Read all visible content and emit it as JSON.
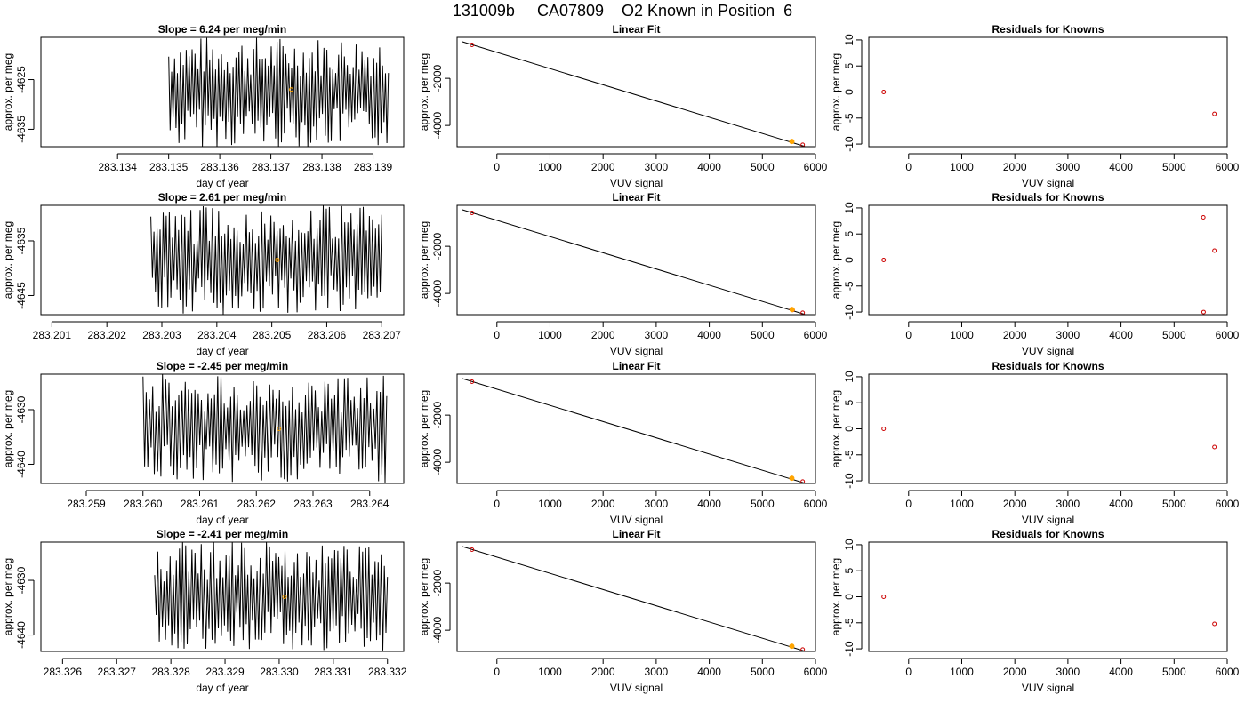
{
  "title": "131009b     CA07809    O2 Known in Position  6",
  "colors": {
    "trace": "#000000",
    "midpoint": "#FFA500",
    "known": "#CC0000",
    "fit": "#000000"
  },
  "chart_data": [
    {
      "type": "line",
      "row": 0,
      "col": 0,
      "title": "Slope =  6.24  per meg/min",
      "xlabel": "day of year",
      "ylabel": "approx. per meg",
      "xlim": [
        283.1325,
        283.1396
      ],
      "ylim": [
        -4638.5,
        -4616.5
      ],
      "xticks": [
        283.134,
        283.135,
        283.136,
        283.137,
        283.138,
        283.139
      ],
      "xticklabels": [
        "283.134",
        "283.135",
        "283.136",
        "283.137",
        "283.138",
        "283.139"
      ],
      "yticks": [
        -4625,
        -4635
      ],
      "yticklabels": [
        "-4625",
        "-4635"
      ],
      "trace_x_range": [
        283.135,
        283.1393
      ],
      "trace_mean": -4627.5,
      "trace_amplitude": 9,
      "midpoint": {
        "x": 283.1374,
        "y": -4627
      }
    },
    {
      "type": "line",
      "row": 1,
      "col": 0,
      "title": "Slope =  2.61  per meg/min",
      "xlabel": "day of year",
      "ylabel": "approx. per meg",
      "xlim": [
        283.2008,
        283.2074
      ],
      "ylim": [
        -4648.5,
        -4628.5
      ],
      "xticks": [
        283.201,
        283.202,
        283.203,
        283.204,
        283.205,
        283.206,
        283.207
      ],
      "xticklabels": [
        "283.201",
        "283.202",
        "283.203",
        "283.204",
        "283.205",
        "283.206",
        "283.207"
      ],
      "yticks": [
        -4635,
        -4645
      ],
      "yticklabels": [
        "-4635",
        "-4645"
      ],
      "trace_x_range": [
        283.2028,
        283.207
      ],
      "trace_mean": -4638.5,
      "trace_amplitude": 8,
      "midpoint": {
        "x": 283.2051,
        "y": -4638.5
      }
    },
    {
      "type": "line",
      "row": 2,
      "col": 0,
      "title": "Slope =  -2.45  per meg/min",
      "xlabel": "day of year",
      "ylabel": "approx. per meg",
      "xlim": [
        283.2582,
        283.2646
      ],
      "ylim": [
        -4643.5,
        -4623.5
      ],
      "xticks": [
        283.259,
        283.26,
        283.261,
        283.262,
        283.263,
        283.264
      ],
      "xticklabels": [
        "283.259",
        "283.260",
        "283.261",
        "283.262",
        "283.263",
        "283.264"
      ],
      "yticks": [
        -4630,
        -4640
      ],
      "yticklabels": [
        "-4630",
        "-4640"
      ],
      "trace_x_range": [
        283.26,
        283.2643
      ],
      "trace_mean": -4633.5,
      "trace_amplitude": 8,
      "midpoint": {
        "x": 283.2624,
        "y": -4633.5
      }
    },
    {
      "type": "line",
      "row": 3,
      "col": 0,
      "title": "Slope =  -2.41  per meg/min",
      "xlabel": "day of year",
      "ylabel": "approx. per meg",
      "xlim": [
        283.3256,
        283.3323
      ],
      "ylim": [
        -4643,
        -4623
      ],
      "xticks": [
        283.326,
        283.327,
        283.328,
        283.329,
        283.33,
        283.331,
        283.332
      ],
      "xticklabels": [
        "283.326",
        "283.327",
        "283.328",
        "283.329",
        "283.330",
        "283.331",
        "283.332"
      ],
      "yticks": [
        -4630,
        -4640
      ],
      "yticklabels": [
        "-4630",
        "-4640"
      ],
      "trace_x_range": [
        283.3277,
        283.332
      ],
      "trace_mean": -4633,
      "trace_amplitude": 8,
      "midpoint": {
        "x": 283.3301,
        "y": -4633
      }
    },
    {
      "type": "scatter",
      "row": 0,
      "col": 1,
      "title": "Linear Fit",
      "xlabel": "VUV signal",
      "ylabel": "approx. per meg",
      "xlim": [
        -750,
        6000
      ],
      "ylim": [
        -4900,
        -260
      ],
      "xticks": [
        0,
        1000,
        2000,
        3000,
        4000,
        5000,
        6000
      ],
      "xticklabels": [
        "0",
        "1000",
        "2000",
        "3000",
        "4000",
        "5000",
        "6000"
      ],
      "yticks": [
        -2000,
        -4000
      ],
      "yticklabels": [
        "-2000",
        "-4000"
      ],
      "fit_line": {
        "x": [
          -650,
          5800
        ],
        "y": [
          -450,
          -4890
        ]
      },
      "points": [
        {
          "x": -470,
          "y": -580
        },
        {
          "x": 5555,
          "y": -4680
        },
        {
          "x": 5760,
          "y": -4822
        }
      ],
      "midpoint": {
        "x": 5555,
        "y": -4680
      }
    },
    {
      "type": "scatter",
      "row": 1,
      "col": 1,
      "title": "Linear Fit",
      "xlabel": "VUV signal",
      "ylabel": "approx. per meg",
      "xlim": [
        -750,
        6000
      ],
      "ylim": [
        -4900,
        -260
      ],
      "xticks": [
        0,
        1000,
        2000,
        3000,
        4000,
        5000,
        6000
      ],
      "xticklabels": [
        "0",
        "1000",
        "2000",
        "3000",
        "4000",
        "5000",
        "6000"
      ],
      "yticks": [
        -2000,
        -4000
      ],
      "yticklabels": [
        "-2000",
        "-4000"
      ],
      "fit_line": {
        "x": [
          -650,
          5800
        ],
        "y": [
          -450,
          -4890
        ]
      },
      "points": [
        {
          "x": -470,
          "y": -580
        },
        {
          "x": 5550,
          "y": -4668
        },
        {
          "x": 5570,
          "y": -4700
        },
        {
          "x": 5760,
          "y": -4822
        }
      ],
      "midpoint": {
        "x": 5560,
        "y": -4684
      }
    },
    {
      "type": "scatter",
      "row": 2,
      "col": 1,
      "title": "Linear Fit",
      "xlabel": "VUV signal",
      "ylabel": "approx. per meg",
      "xlim": [
        -750,
        6000
      ],
      "ylim": [
        -4900,
        -260
      ],
      "xticks": [
        0,
        1000,
        2000,
        3000,
        4000,
        5000,
        6000
      ],
      "xticklabels": [
        "0",
        "1000",
        "2000",
        "3000",
        "4000",
        "5000",
        "6000"
      ],
      "yticks": [
        -2000,
        -4000
      ],
      "yticklabels": [
        "-2000",
        "-4000"
      ],
      "fit_line": {
        "x": [
          -650,
          5800
        ],
        "y": [
          -450,
          -4890
        ]
      },
      "points": [
        {
          "x": -470,
          "y": -580
        },
        {
          "x": 5555,
          "y": -4680
        },
        {
          "x": 5760,
          "y": -4822
        }
      ],
      "midpoint": {
        "x": 5555,
        "y": -4680
      }
    },
    {
      "type": "scatter",
      "row": 3,
      "col": 1,
      "title": "Linear Fit",
      "xlabel": "VUV signal",
      "ylabel": "approx. per meg",
      "xlim": [
        -750,
        6000
      ],
      "ylim": [
        -4900,
        -260
      ],
      "xticks": [
        0,
        1000,
        2000,
        3000,
        4000,
        5000,
        6000
      ],
      "xticklabels": [
        "0",
        "1000",
        "2000",
        "3000",
        "4000",
        "5000",
        "6000"
      ],
      "yticks": [
        -2000,
        -4000
      ],
      "yticklabels": [
        "-2000",
        "-4000"
      ],
      "fit_line": {
        "x": [
          -650,
          5800
        ],
        "y": [
          -450,
          -4890
        ]
      },
      "points": [
        {
          "x": -470,
          "y": -580
        },
        {
          "x": 5555,
          "y": -4680
        },
        {
          "x": 5760,
          "y": -4822
        }
      ],
      "midpoint": {
        "x": 5555,
        "y": -4680
      }
    },
    {
      "type": "scatter",
      "row": 0,
      "col": 2,
      "title": "Residuals for Knowns",
      "xlabel": "VUV signal",
      "ylabel": "approx. per meg",
      "xlim": [
        -750,
        6000
      ],
      "ylim": [
        -10.5,
        10.5
      ],
      "xticks": [
        0,
        1000,
        2000,
        3000,
        4000,
        5000,
        6000
      ],
      "xticklabels": [
        "0",
        "1000",
        "2000",
        "3000",
        "4000",
        "5000",
        "6000"
      ],
      "yticks": [
        10,
        5,
        0,
        -5,
        -10
      ],
      "yticklabels": [
        "10",
        "5",
        "0",
        "-5",
        "-10"
      ],
      "points": [
        {
          "x": -470,
          "y": 0
        },
        {
          "x": 5760,
          "y": -4.2
        }
      ]
    },
    {
      "type": "scatter",
      "row": 1,
      "col": 2,
      "title": "Residuals for Knowns",
      "xlabel": "VUV signal",
      "ylabel": "approx. per meg",
      "xlim": [
        -750,
        6000
      ],
      "ylim": [
        -10.5,
        10.5
      ],
      "xticks": [
        0,
        1000,
        2000,
        3000,
        4000,
        5000,
        6000
      ],
      "xticklabels": [
        "0",
        "1000",
        "2000",
        "3000",
        "4000",
        "5000",
        "6000"
      ],
      "yticks": [
        10,
        5,
        0,
        -5,
        -10
      ],
      "yticklabels": [
        "10",
        "5",
        "0",
        "-5",
        "-10"
      ],
      "points": [
        {
          "x": -470,
          "y": 0
        },
        {
          "x": 5550,
          "y": 8.2
        },
        {
          "x": 5555,
          "y": -10
        },
        {
          "x": 5760,
          "y": 1.8
        }
      ]
    },
    {
      "type": "scatter",
      "row": 2,
      "col": 2,
      "title": "Residuals for Knowns",
      "xlabel": "VUV signal",
      "ylabel": "approx. per meg",
      "xlim": [
        -750,
        6000
      ],
      "ylim": [
        -10.5,
        10.5
      ],
      "xticks": [
        0,
        1000,
        2000,
        3000,
        4000,
        5000,
        6000
      ],
      "xticklabels": [
        "0",
        "1000",
        "2000",
        "3000",
        "4000",
        "5000",
        "6000"
      ],
      "yticks": [
        10,
        5,
        0,
        -5,
        -10
      ],
      "yticklabels": [
        "10",
        "5",
        "0",
        "-5",
        "-10"
      ],
      "points": [
        {
          "x": -470,
          "y": 0
        },
        {
          "x": 5760,
          "y": -3.5
        }
      ]
    },
    {
      "type": "scatter",
      "row": 3,
      "col": 2,
      "title": "Residuals for Knowns",
      "xlabel": "VUV signal",
      "ylabel": "approx. per meg",
      "xlim": [
        -750,
        6000
      ],
      "ylim": [
        -10.5,
        10.5
      ],
      "xticks": [
        0,
        1000,
        2000,
        3000,
        4000,
        5000,
        6000
      ],
      "xticklabels": [
        "0",
        "1000",
        "2000",
        "3000",
        "4000",
        "5000",
        "6000"
      ],
      "yticks": [
        10,
        5,
        0,
        -5,
        -10
      ],
      "yticklabels": [
        "10",
        "5",
        "0",
        "-5",
        "-10"
      ],
      "points": [
        {
          "x": -470,
          "y": 0
        },
        {
          "x": 5760,
          "y": -5.2
        }
      ]
    }
  ]
}
